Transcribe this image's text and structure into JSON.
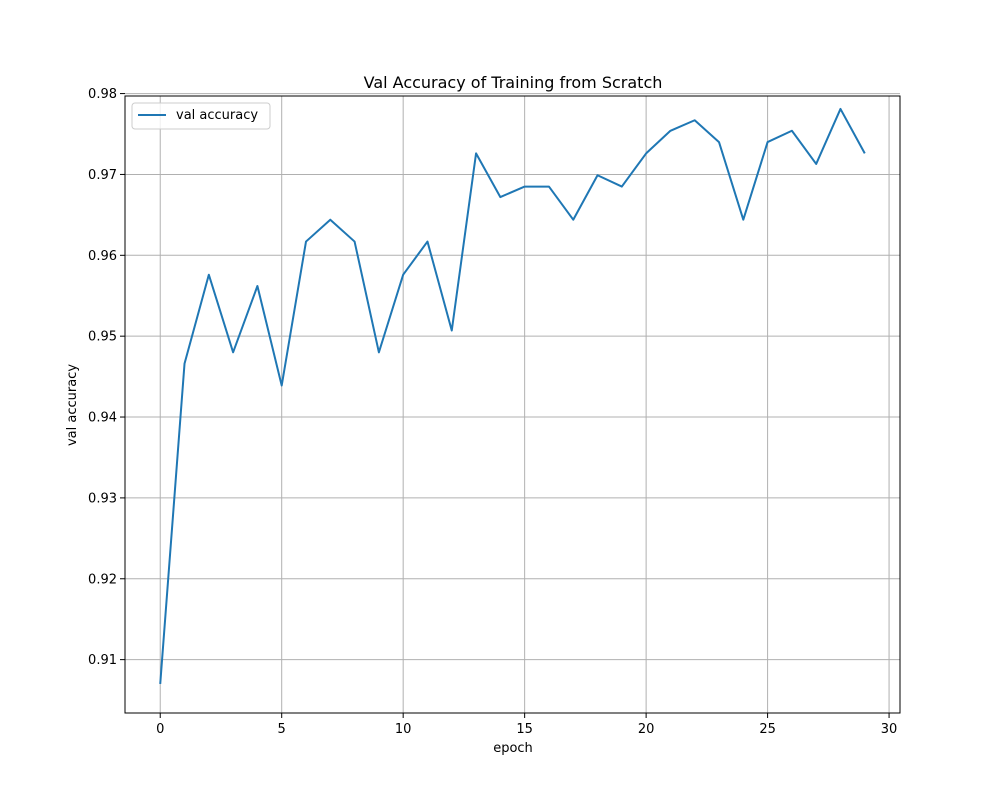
{
  "chart_data": {
    "type": "line",
    "title": "Val Accuracy of Training from Scratch",
    "xlabel": "epoch",
    "ylabel": "val accuracy",
    "xlim": [
      -1.45,
      30.45
    ],
    "ylim": [
      0.9034,
      0.9797
    ],
    "xticks": [
      0,
      5,
      10,
      15,
      20,
      25,
      30
    ],
    "xtick_labels": [
      "0",
      "5",
      "10",
      "15",
      "20",
      "25",
      "30"
    ],
    "yticks": [
      0.91,
      0.92,
      0.93,
      0.94,
      0.95,
      0.96,
      0.97,
      0.98
    ],
    "ytick_labels": [
      "0.91",
      "0.92",
      "0.93",
      "0.94",
      "0.95",
      "0.96",
      "0.97",
      "0.98"
    ],
    "grid": true,
    "legend": {
      "position": "top-left",
      "entries": [
        "val accuracy"
      ]
    },
    "series": [
      {
        "name": "val accuracy",
        "color": "#1f77b4",
        "x": [
          0,
          1,
          2,
          3,
          4,
          5,
          6,
          7,
          8,
          9,
          10,
          11,
          12,
          13,
          14,
          15,
          16,
          17,
          18,
          19,
          20,
          21,
          22,
          23,
          24,
          25,
          26,
          27,
          28,
          29
        ],
        "values": [
          0.907,
          0.9466,
          0.9576,
          0.948,
          0.9562,
          0.9439,
          0.9617,
          0.9644,
          0.9617,
          0.948,
          0.9576,
          0.9617,
          0.9507,
          0.9726,
          0.9672,
          0.9685,
          0.9685,
          0.9644,
          0.9699,
          0.9685,
          0.9726,
          0.9754,
          0.9767,
          0.974,
          0.9644,
          0.974,
          0.9754,
          0.9713,
          0.9781,
          0.9726
        ]
      }
    ]
  }
}
